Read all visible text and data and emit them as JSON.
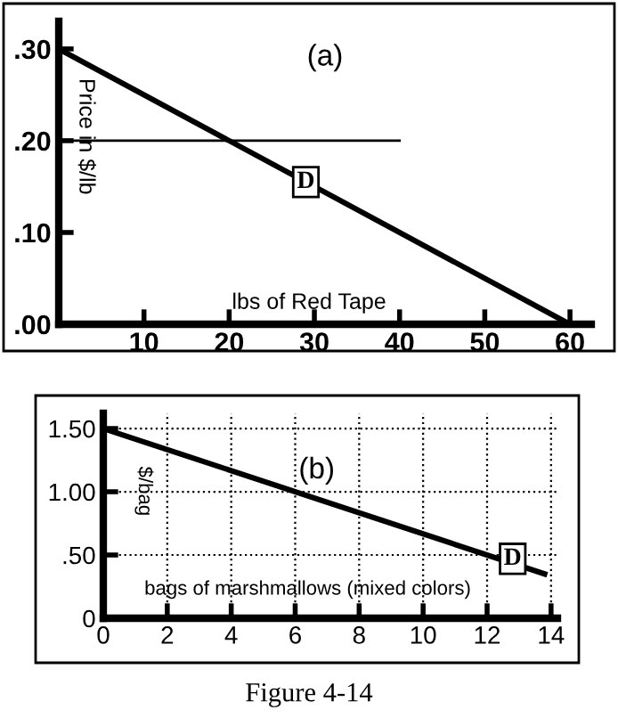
{
  "chart_data": [
    {
      "type": "line",
      "title": "(a)",
      "xlabel": "lbs of Red Tape",
      "ylabel": "Price in $/lb",
      "series": [
        {
          "x": [
            0,
            60
          ],
          "values": [
            0.3,
            0.0
          ],
          "color": "#000000"
        },
        {
          "x": [
            0,
            40
          ],
          "values": [
            0.2,
            0.2
          ],
          "color": "#000000"
        }
      ],
      "annotations": [
        {
          "text": "D",
          "x": 29,
          "y": 0.155
        }
      ],
      "xlim": [
        0,
        62.5
      ],
      "xticks": [
        10,
        20,
        30,
        40,
        50,
        60
      ],
      "ylim": [
        0,
        0.33
      ],
      "yticks": [
        {
          "value": 0,
          "label": ".00"
        },
        {
          "value": 0.1,
          "label": ".10"
        },
        {
          "value": 0.2,
          "label": ".20"
        },
        {
          "value": 0.3,
          "label": ".30"
        }
      ],
      "grid": false,
      "marker": "none",
      "line_style": "solid"
    },
    {
      "type": "line",
      "title": "(b)",
      "xlabel": "bags of marshmallows (mixed colors)",
      "ylabel": "$/bag",
      "series": [
        {
          "x": [
            0,
            13.8
          ],
          "values": [
            1.5,
            0.35
          ],
          "color": "#000000"
        }
      ],
      "annotations": [
        {
          "text": "D",
          "x": 12.8,
          "y": 0.47
        },
        "Figure 4-14"
      ],
      "xlim": [
        0,
        14.2
      ],
      "xticks": [
        0,
        2,
        4,
        6,
        8,
        10,
        12,
        14
      ],
      "ylim": [
        0,
        1.62
      ],
      "yticks": [
        0,
        {
          "value": 0.5,
          "label": ".50"
        },
        {
          "value": 1.0,
          "label": "1.00"
        },
        {
          "value": 1.5,
          "label": "1.50"
        }
      ],
      "grid": true,
      "marker": "none",
      "line_style": "solid"
    }
  ]
}
